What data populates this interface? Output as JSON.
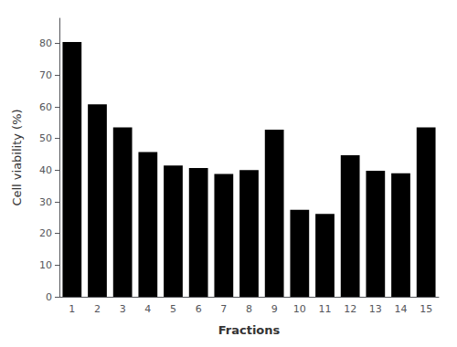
{
  "chart_data": {
    "type": "bar",
    "categories": [
      "1",
      "2",
      "3",
      "4",
      "5",
      "6",
      "7",
      "8",
      "9",
      "10",
      "11",
      "12",
      "13",
      "14",
      "15"
    ],
    "values": [
      80.5,
      60.8,
      53.5,
      45.7,
      41.5,
      40.7,
      38.8,
      40.0,
      52.8,
      27.5,
      26.2,
      44.7,
      39.8,
      39.0,
      53.5
    ],
    "color": "#000000",
    "xlabel": "Fractions",
    "ylabel": "Cell viability (%)",
    "ylim": [
      0,
      88
    ],
    "yticks": [
      0,
      10,
      20,
      30,
      40,
      50,
      60,
      70,
      80
    ],
    "grid": false
  }
}
